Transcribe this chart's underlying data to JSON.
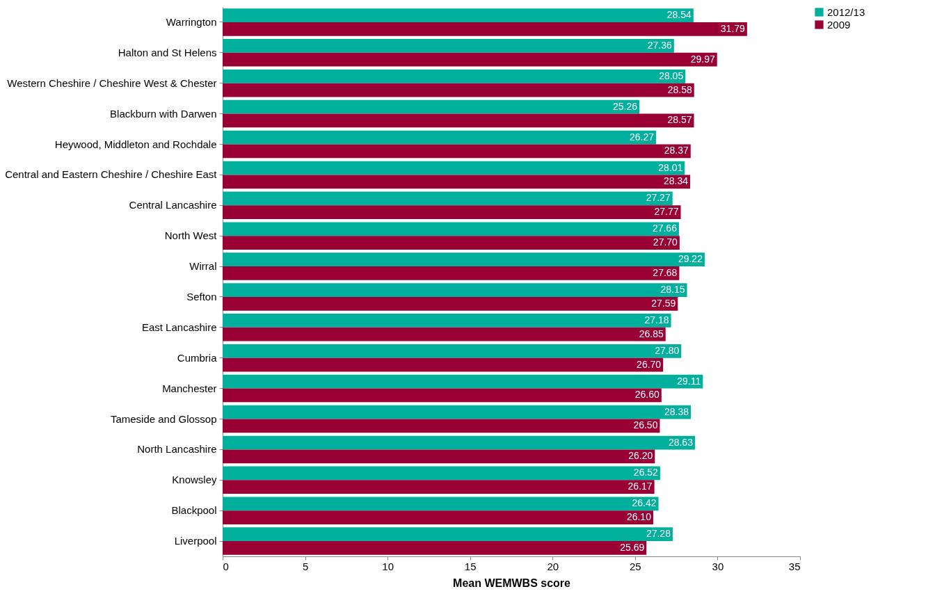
{
  "chart_data": {
    "type": "bar",
    "orientation": "horizontal",
    "xlabel": "Mean WEMWBS score",
    "categories": [
      "Warrington",
      "Halton and St Helens",
      "Western Cheshire / Cheshire West & Chester",
      "Blackburn with Darwen",
      "Heywood, Middleton and Rochdale",
      "Central and Eastern Cheshire / Cheshire East",
      "Central Lancashire",
      "North West",
      "Wirral",
      "Sefton",
      "East Lancashire",
      "Cumbria",
      "Manchester",
      "Tameside and Glossop",
      "North Lancashire",
      "Knowsley",
      "Blackpool",
      "Liverpool"
    ],
    "series": [
      {
        "name": "2012/13",
        "color": "#00b09c",
        "values": [
          28.54,
          27.36,
          28.05,
          25.26,
          26.27,
          28.01,
          27.27,
          27.66,
          29.22,
          28.15,
          27.18,
          27.8,
          29.11,
          28.38,
          28.63,
          26.52,
          26.42,
          27.28
        ],
        "value_labels": [
          "28.54",
          "27.36",
          "28.05",
          "25.26",
          "26.27",
          "28.01",
          "27.27",
          "27.66",
          "29.22",
          "28.15",
          "27.18",
          "27.80",
          "29.11",
          "28.38",
          "28.63",
          "26.52",
          "26.42",
          "27.28"
        ]
      },
      {
        "name": "2009",
        "color": "#990033",
        "values": [
          31.79,
          29.97,
          28.58,
          28.57,
          28.37,
          28.34,
          27.77,
          27.7,
          27.68,
          27.59,
          26.85,
          26.7,
          26.6,
          26.5,
          26.2,
          26.17,
          26.1,
          25.69
        ],
        "value_labels": [
          "31.79",
          "29.97",
          "28.58",
          "28.57",
          "28.37",
          "28.34",
          "27.77",
          "27.70",
          "27.68",
          "27.59",
          "26.85",
          "26.70",
          "26.60",
          "26.50",
          "26.20",
          "26.17",
          "26.10",
          "25.69"
        ]
      }
    ],
    "xlim": [
      0,
      35
    ],
    "xticks": [
      0,
      5,
      10,
      15,
      20,
      25,
      30,
      35
    ],
    "grid": false,
    "legend": "right"
  }
}
